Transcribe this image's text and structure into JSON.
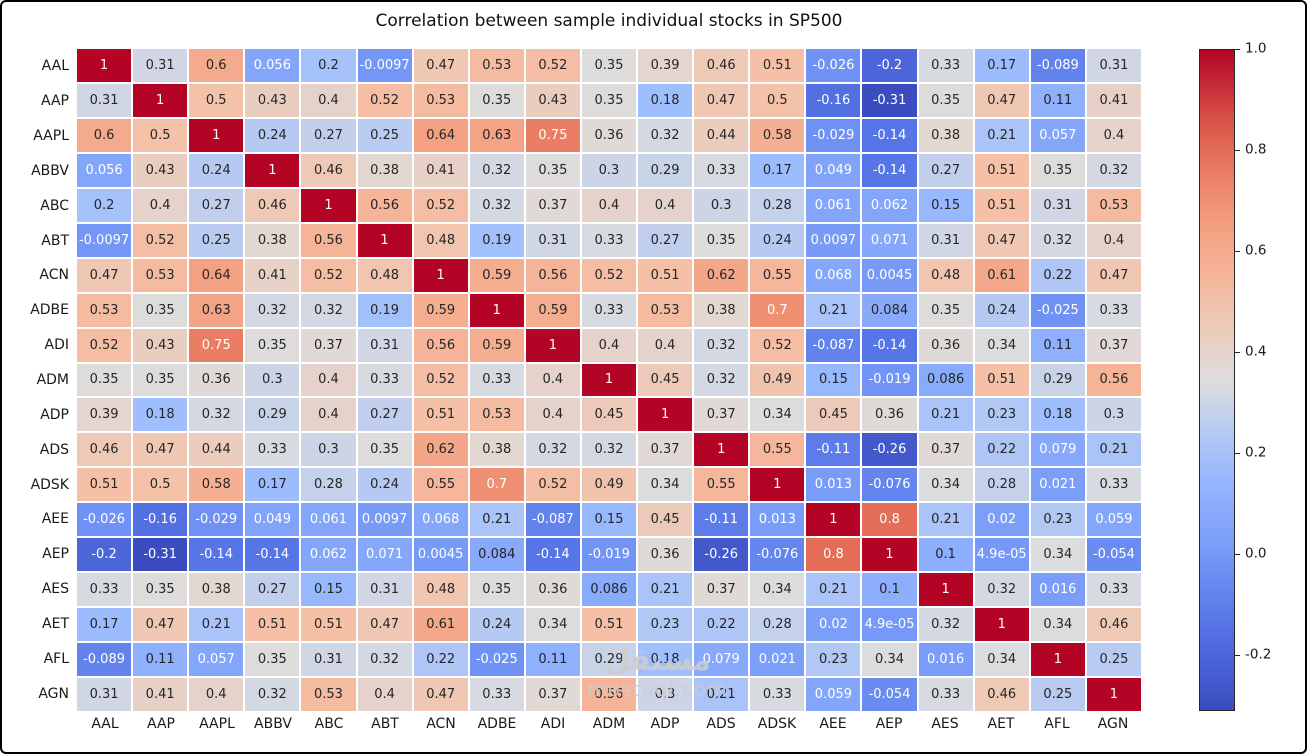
{
  "title": "Correlation between sample individual stocks in SP500",
  "watermark": {
    "line1": "مستقل",
    "line2": "mostaql.com"
  },
  "chart_data": {
    "type": "heatmap",
    "title": "Correlation between sample individual stocks in SP500",
    "colormap": "coolwarm",
    "vmin": -0.31,
    "vmax": 1.0,
    "annotated": true,
    "gridline_color": "#ffffff",
    "colorbar_position": "right",
    "colorbar_ticks": [
      "1.0",
      "0.8",
      "0.6",
      "0.4",
      "0.2",
      "0.0",
      "-0.2"
    ],
    "labels": [
      "AAL",
      "AAP",
      "AAPL",
      "ABBV",
      "ABC",
      "ABT",
      "ACN",
      "ADBE",
      "ADI",
      "ADM",
      "ADP",
      "ADS",
      "ADSK",
      "AEE",
      "AEP",
      "AES",
      "AET",
      "AFL",
      "AGN"
    ],
    "matrix": [
      [
        "1",
        "0.31",
        "0.6",
        "0.056",
        "0.2",
        "-0.0097",
        "0.47",
        "0.53",
        "0.52",
        "0.35",
        "0.39",
        "0.46",
        "0.51",
        "-0.026",
        "-0.2",
        "0.33",
        "0.17",
        "-0.089",
        "0.31"
      ],
      [
        "0.31",
        "1",
        "0.5",
        "0.43",
        "0.4",
        "0.52",
        "0.53",
        "0.35",
        "0.43",
        "0.35",
        "0.18",
        "0.47",
        "0.5",
        "-0.16",
        "-0.31",
        "0.35",
        "0.47",
        "0.11",
        "0.41"
      ],
      [
        "0.6",
        "0.5",
        "1",
        "0.24",
        "0.27",
        "0.25",
        "0.64",
        "0.63",
        "0.75",
        "0.36",
        "0.32",
        "0.44",
        "0.58",
        "-0.029",
        "-0.14",
        "0.38",
        "0.21",
        "0.057",
        "0.4"
      ],
      [
        "0.056",
        "0.43",
        "0.24",
        "1",
        "0.46",
        "0.38",
        "0.41",
        "0.32",
        "0.35",
        "0.3",
        "0.29",
        "0.33",
        "0.17",
        "0.049",
        "-0.14",
        "0.27",
        "0.51",
        "0.35",
        "0.32"
      ],
      [
        "0.2",
        "0.4",
        "0.27",
        "0.46",
        "1",
        "0.56",
        "0.52",
        "0.32",
        "0.37",
        "0.4",
        "0.4",
        "0.3",
        "0.28",
        "0.061",
        "0.062",
        "0.15",
        "0.51",
        "0.31",
        "0.53"
      ],
      [
        "-0.0097",
        "0.52",
        "0.25",
        "0.38",
        "0.56",
        "1",
        "0.48",
        "0.19",
        "0.31",
        "0.33",
        "0.27",
        "0.35",
        "0.24",
        "0.0097",
        "0.071",
        "0.31",
        "0.47",
        "0.32",
        "0.4"
      ],
      [
        "0.47",
        "0.53",
        "0.64",
        "0.41",
        "0.52",
        "0.48",
        "1",
        "0.59",
        "0.56",
        "0.52",
        "0.51",
        "0.62",
        "0.55",
        "0.068",
        "0.0045",
        "0.48",
        "0.61",
        "0.22",
        "0.47"
      ],
      [
        "0.53",
        "0.35",
        "0.63",
        "0.32",
        "0.32",
        "0.19",
        "0.59",
        "1",
        "0.59",
        "0.33",
        "0.53",
        "0.38",
        "0.7",
        "0.21",
        "0.084",
        "0.35",
        "0.24",
        "-0.025",
        "0.33"
      ],
      [
        "0.52",
        "0.43",
        "0.75",
        "0.35",
        "0.37",
        "0.31",
        "0.56",
        "0.59",
        "1",
        "0.4",
        "0.4",
        "0.32",
        "0.52",
        "-0.087",
        "-0.14",
        "0.36",
        "0.34",
        "0.11",
        "0.37"
      ],
      [
        "0.35",
        "0.35",
        "0.36",
        "0.3",
        "0.4",
        "0.33",
        "0.52",
        "0.33",
        "0.4",
        "1",
        "0.45",
        "0.32",
        "0.49",
        "0.15",
        "-0.019",
        "0.086",
        "0.51",
        "0.29",
        "0.56"
      ],
      [
        "0.39",
        "0.18",
        "0.32",
        "0.29",
        "0.4",
        "0.27",
        "0.51",
        "0.53",
        "0.4",
        "0.45",
        "1",
        "0.37",
        "0.34",
        "0.45",
        "0.36",
        "0.21",
        "0.23",
        "0.18",
        "0.3"
      ],
      [
        "0.46",
        "0.47",
        "0.44",
        "0.33",
        "0.3",
        "0.35",
        "0.62",
        "0.38",
        "0.32",
        "0.32",
        "0.37",
        "1",
        "0.55",
        "-0.11",
        "-0.26",
        "0.37",
        "0.22",
        "0.079",
        "0.21"
      ],
      [
        "0.51",
        "0.5",
        "0.58",
        "0.17",
        "0.28",
        "0.24",
        "0.55",
        "0.7",
        "0.52",
        "0.49",
        "0.34",
        "0.55",
        "1",
        "0.013",
        "-0.076",
        "0.34",
        "0.28",
        "0.021",
        "0.33"
      ],
      [
        "-0.026",
        "-0.16",
        "-0.029",
        "0.049",
        "0.061",
        "0.0097",
        "0.068",
        "0.21",
        "-0.087",
        "0.15",
        "0.45",
        "-0.11",
        "0.013",
        "1",
        "0.8",
        "0.21",
        "0.02",
        "0.23",
        "0.059"
      ],
      [
        "-0.2",
        "-0.31",
        "-0.14",
        "-0.14",
        "0.062",
        "0.071",
        "0.0045",
        "0.084",
        "-0.14",
        "-0.019",
        "0.36",
        "-0.26",
        "-0.076",
        "0.8",
        "1",
        "0.1",
        "4.9e-05",
        "0.34",
        "-0.054"
      ],
      [
        "0.33",
        "0.35",
        "0.38",
        "0.27",
        "0.15",
        "0.31",
        "0.48",
        "0.35",
        "0.36",
        "0.086",
        "0.21",
        "0.37",
        "0.34",
        "0.21",
        "0.1",
        "1",
        "0.32",
        "0.016",
        "0.33"
      ],
      [
        "0.17",
        "0.47",
        "0.21",
        "0.51",
        "0.51",
        "0.47",
        "0.61",
        "0.24",
        "0.34",
        "0.51",
        "0.23",
        "0.22",
        "0.28",
        "0.02",
        "4.9e-05",
        "0.32",
        "1",
        "0.34",
        "0.46"
      ],
      [
        "-0.089",
        "0.11",
        "0.057",
        "0.35",
        "0.31",
        "0.32",
        "0.22",
        "-0.025",
        "0.11",
        "0.29",
        "0.18",
        "0.079",
        "0.021",
        "0.23",
        "0.34",
        "0.016",
        "0.34",
        "1",
        "0.25"
      ],
      [
        "0.31",
        "0.41",
        "0.4",
        "0.32",
        "0.53",
        "0.4",
        "0.47",
        "0.33",
        "0.37",
        "0.56",
        "0.3",
        "0.21",
        "0.33",
        "0.059",
        "-0.054",
        "0.33",
        "0.46",
        "0.25",
        "1"
      ]
    ]
  }
}
